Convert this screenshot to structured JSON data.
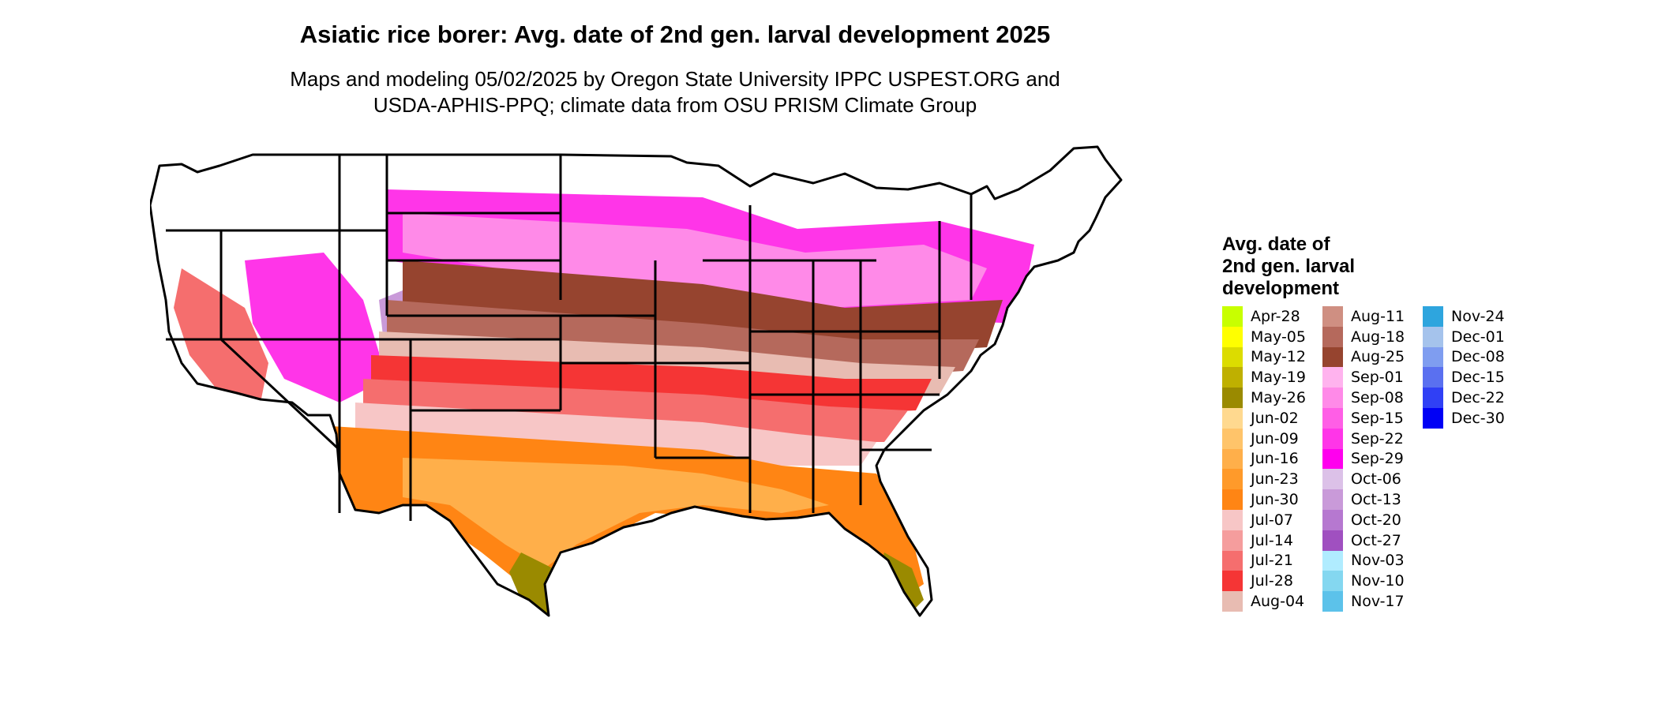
{
  "title": "Asiatic rice borer: Avg. date of 2nd gen. larval development 2025",
  "subtitle_line1": "Maps and modeling 05/02/2025 by Oregon State University IPPC USPEST.ORG and",
  "subtitle_line2": "USDA-APHIS-PPQ; climate data from OSU PRISM Climate Group",
  "legend": {
    "title_line1": "Avg. date of",
    "title_line2": "2nd gen. larval",
    "title_line3": "development",
    "columns": [
      [
        {
          "label": "Apr-28",
          "color": "#c8ff00"
        },
        {
          "label": "May-05",
          "color": "#ffff00"
        },
        {
          "label": "May-12",
          "color": "#dcdc00"
        },
        {
          "label": "May-19",
          "color": "#bfb000"
        },
        {
          "label": "May-26",
          "color": "#9a8a00"
        },
        {
          "label": "Jun-02",
          "color": "#ffd98f"
        },
        {
          "label": "Jun-09",
          "color": "#ffc46a"
        },
        {
          "label": "Jun-16",
          "color": "#ffaf4a"
        },
        {
          "label": "Jun-23",
          "color": "#ff9a2a"
        },
        {
          "label": "Jun-30",
          "color": "#ff8514"
        },
        {
          "label": "Jul-07",
          "color": "#f7c6c6"
        },
        {
          "label": "Jul-14",
          "color": "#f59d9d"
        },
        {
          "label": "Jul-21",
          "color": "#f56e6e"
        },
        {
          "label": "Jul-28",
          "color": "#f53535"
        },
        {
          "label": "Aug-04",
          "color": "#e8bcb2"
        }
      ],
      [
        {
          "label": "Aug-11",
          "color": "#cf8f82"
        },
        {
          "label": "Aug-18",
          "color": "#b5695c"
        },
        {
          "label": "Aug-25",
          "color": "#96442f"
        },
        {
          "label": "Sep-01",
          "color": "#ffb3ee"
        },
        {
          "label": "Sep-08",
          "color": "#ff8ae8"
        },
        {
          "label": "Sep-15",
          "color": "#ff5ee6"
        },
        {
          "label": "Sep-22",
          "color": "#ff35e8"
        },
        {
          "label": "Sep-29",
          "color": "#ff00ee"
        },
        {
          "label": "Oct-06",
          "color": "#dcc1e8"
        },
        {
          "label": "Oct-13",
          "color": "#c99ad9"
        },
        {
          "label": "Oct-20",
          "color": "#b678d0"
        },
        {
          "label": "Oct-27",
          "color": "#a050c0"
        },
        {
          "label": "Nov-03",
          "color": "#b0ecff"
        },
        {
          "label": "Nov-10",
          "color": "#84d7f0"
        },
        {
          "label": "Nov-17",
          "color": "#5cc2ea"
        }
      ],
      [
        {
          "label": "Nov-24",
          "color": "#2ea5de"
        },
        {
          "label": "Dec-01",
          "color": "#a5c3ec"
        },
        {
          "label": "Dec-08",
          "color": "#7f9df0"
        },
        {
          "label": "Dec-15",
          "color": "#5a70f0"
        },
        {
          "label": "Dec-22",
          "color": "#3040f5"
        },
        {
          "label": "Dec-30",
          "color": "#0000f5"
        }
      ]
    ]
  },
  "map": {
    "background": "#ffffff",
    "border_color": "#000000",
    "band_colors": {
      "south_tip": "#9a8a00",
      "gulf": "#ff8514",
      "south_light": "#ffaf4a",
      "pink_band": "#f7c6c6",
      "red_band": "#f53535",
      "mid_red": "#f56e6e",
      "brown_light": "#e8bcb2",
      "brown_mid": "#b5695c",
      "brown_dark": "#96442f",
      "magenta": "#ff35e8",
      "magenta_light": "#ff8ae8",
      "lavender": "#c99ad9"
    }
  }
}
